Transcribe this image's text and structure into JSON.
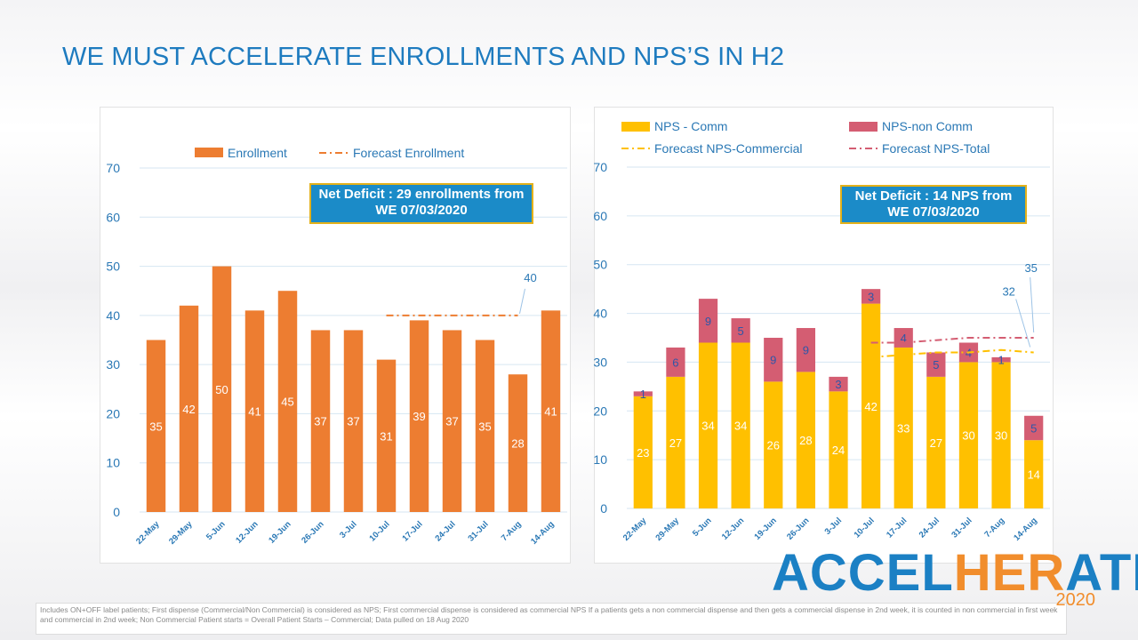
{
  "slide": {
    "title": "WE MUST ACCELERATE ENROLLMENTS AND NPS’S IN H2",
    "footnote": "Includes ON+OFF label patients; First dispense (Commercial/Non Commercial) is considered as NPS; First commercial dispense is considered as commercial NPS If a patients gets a non commercial dispense and then gets a commercial dispense in 2nd week, it is counted in non commercial in first week and commercial in 2nd week; Non Commercial Patient starts = Overall Patient Starts – Commercial;  Data pulled on 18 Aug 2020",
    "logo": {
      "part1": "ACCEL",
      "part2": "HER",
      "part3": "ATE",
      "year": "2020"
    }
  },
  "chart_data": [
    {
      "type": "bar",
      "title": "",
      "categories": [
        "22-May",
        "29-May",
        "5-Jun",
        "12-Jun",
        "19-Jun",
        "26-Jun",
        "3-Jul",
        "10-Jul",
        "17-Jul",
        "24-Jul",
        "31-Jul",
        "7-Aug",
        "14-Aug"
      ],
      "series": [
        {
          "name": "Enrollment",
          "values": [
            35,
            42,
            50,
            41,
            45,
            37,
            37,
            31,
            39,
            37,
            35,
            28,
            41
          ],
          "color": "#ed7d31"
        },
        {
          "name": "Forecast Enrollment",
          "type": "line",
          "style": "dash-dot",
          "values": [
            null,
            null,
            null,
            null,
            null,
            null,
            null,
            40,
            40,
            40,
            40,
            40,
            null
          ],
          "color": "#ed7d31"
        }
      ],
      "annotation_value": "40",
      "callout": "Net Deficit : 29 enrollments from WE 07/03/2020",
      "ylim": [
        0,
        70
      ],
      "yticks": [
        0,
        10,
        20,
        30,
        40,
        50,
        60,
        70
      ],
      "grid": true,
      "legend": "top"
    },
    {
      "type": "bar",
      "stacked": true,
      "title": "",
      "categories": [
        "22-May",
        "29-May",
        "5-Jun",
        "12-Jun",
        "19-Jun",
        "26-Jun",
        "3-Jul",
        "10-Jul",
        "17-Jul",
        "24-Jul",
        "31-Jul",
        "7-Aug",
        "14-Aug"
      ],
      "series": [
        {
          "name": "NPS - Comm",
          "values": [
            23,
            27,
            34,
            34,
            26,
            28,
            24,
            42,
            33,
            27,
            30,
            30,
            14
          ],
          "color": "#ffc000"
        },
        {
          "name": "NPS-non Comm",
          "values": [
            1,
            6,
            9,
            5,
            9,
            9,
            3,
            3,
            4,
            5,
            4,
            1,
            5
          ],
          "color": "#d45d72"
        },
        {
          "name": "Forecast NPS-Commercial",
          "type": "line",
          "style": "dash-dot",
          "values": [
            null,
            null,
            null,
            null,
            null,
            null,
            null,
            31,
            31.5,
            32,
            32,
            32.5,
            32
          ],
          "color": "#ffc000"
        },
        {
          "name": "Forecast NPS-Total",
          "type": "line",
          "style": "dash-dot",
          "values": [
            null,
            null,
            null,
            null,
            null,
            null,
            null,
            34,
            34,
            34.5,
            35,
            35,
            35
          ],
          "color": "#d45d72"
        }
      ],
      "annotations": [
        "32",
        "35"
      ],
      "callout": "Net Deficit : 14 NPS from WE 07/03/2020",
      "ylim": [
        0,
        70
      ],
      "yticks": [
        0,
        10,
        20,
        30,
        40,
        50,
        60,
        70
      ],
      "grid": true,
      "legend": "top"
    }
  ]
}
